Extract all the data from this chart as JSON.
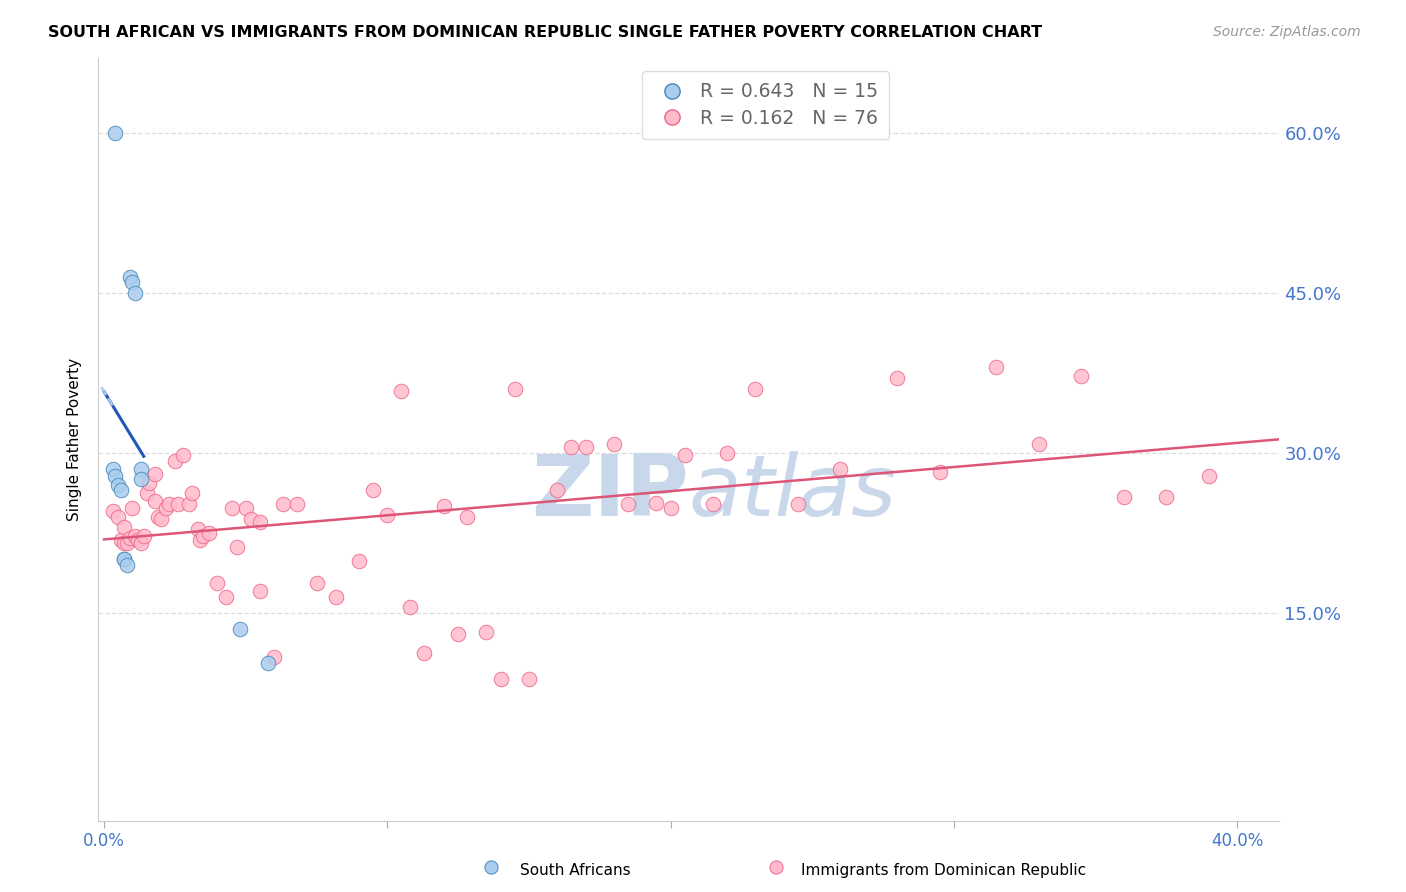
{
  "title": "SOUTH AFRICAN VS IMMIGRANTS FROM DOMINICAN REPUBLIC SINGLE FATHER POVERTY CORRELATION CHART",
  "source": "Source: ZipAtlas.com",
  "ylabel": "Single Father Poverty",
  "right_ytick_vals": [
    0.15,
    0.3,
    0.45,
    0.6
  ],
  "right_ytick_labels": [
    "15.0%",
    "30.0%",
    "45.0%",
    "60.0%"
  ],
  "xtick_vals": [
    0.0,
    0.1,
    0.2,
    0.3,
    0.4
  ],
  "xtick_labels": [
    "0.0%",
    "",
    "",
    "",
    "40.0%"
  ],
  "xmin": -0.002,
  "xmax": 0.415,
  "ymin": -0.045,
  "ymax": 0.67,
  "legend_blue_r": "R = 0.643",
  "legend_blue_n": "N = 15",
  "legend_pink_r": "R = 0.162",
  "legend_pink_n": "N = 76",
  "blue_face": "#AACCEE",
  "blue_edge": "#4488BB",
  "pink_face": "#FFBBCC",
  "pink_edge": "#EE6688",
  "blue_line_color": "#2255BB",
  "pink_line_color": "#DD5577",
  "dashed_line_color": "#AACCEE",
  "watermark_color": "#C8D8EA",
  "grid_color": "#DDDDDD",
  "blue_x": [
    0.004,
    0.009,
    0.01,
    0.011,
    0.013,
    0.013,
    0.003,
    0.004,
    0.005,
    0.006,
    0.007,
    0.007,
    0.008,
    0.048,
    0.058
  ],
  "blue_y": [
    0.6,
    0.465,
    0.46,
    0.45,
    0.285,
    0.275,
    0.285,
    0.278,
    0.27,
    0.265,
    0.2,
    0.2,
    0.195,
    0.135,
    0.103
  ],
  "pink_x": [
    0.003,
    0.005,
    0.006,
    0.007,
    0.007,
    0.008,
    0.009,
    0.01,
    0.011,
    0.012,
    0.013,
    0.014,
    0.015,
    0.016,
    0.018,
    0.018,
    0.019,
    0.02,
    0.022,
    0.023,
    0.025,
    0.026,
    0.028,
    0.03,
    0.031,
    0.033,
    0.034,
    0.035,
    0.037,
    0.04,
    0.043,
    0.045,
    0.047,
    0.05,
    0.052,
    0.055,
    0.06,
    0.063,
    0.068,
    0.075,
    0.082,
    0.09,
    0.095,
    0.1,
    0.108,
    0.113,
    0.12,
    0.128,
    0.135,
    0.14,
    0.15,
    0.16,
    0.17,
    0.18,
    0.195,
    0.205,
    0.215,
    0.23,
    0.245,
    0.26,
    0.28,
    0.295,
    0.315,
    0.33,
    0.345,
    0.36,
    0.375,
    0.39,
    0.055,
    0.105,
    0.125,
    0.145,
    0.165,
    0.185,
    0.2,
    0.22
  ],
  "pink_y": [
    0.245,
    0.24,
    0.218,
    0.23,
    0.215,
    0.215,
    0.22,
    0.248,
    0.222,
    0.218,
    0.215,
    0.222,
    0.262,
    0.272,
    0.28,
    0.255,
    0.24,
    0.238,
    0.248,
    0.252,
    0.292,
    0.252,
    0.298,
    0.252,
    0.262,
    0.228,
    0.218,
    0.222,
    0.225,
    0.178,
    0.165,
    0.248,
    0.212,
    0.248,
    0.238,
    0.235,
    0.108,
    0.252,
    0.252,
    0.178,
    0.165,
    0.198,
    0.265,
    0.242,
    0.155,
    0.112,
    0.25,
    0.24,
    0.132,
    0.088,
    0.088,
    0.265,
    0.305,
    0.308,
    0.253,
    0.298,
    0.252,
    0.36,
    0.252,
    0.285,
    0.37,
    0.282,
    0.38,
    0.308,
    0.372,
    0.258,
    0.258,
    0.278,
    0.17,
    0.358,
    0.13,
    0.36,
    0.305,
    0.252,
    0.248,
    0.3
  ]
}
